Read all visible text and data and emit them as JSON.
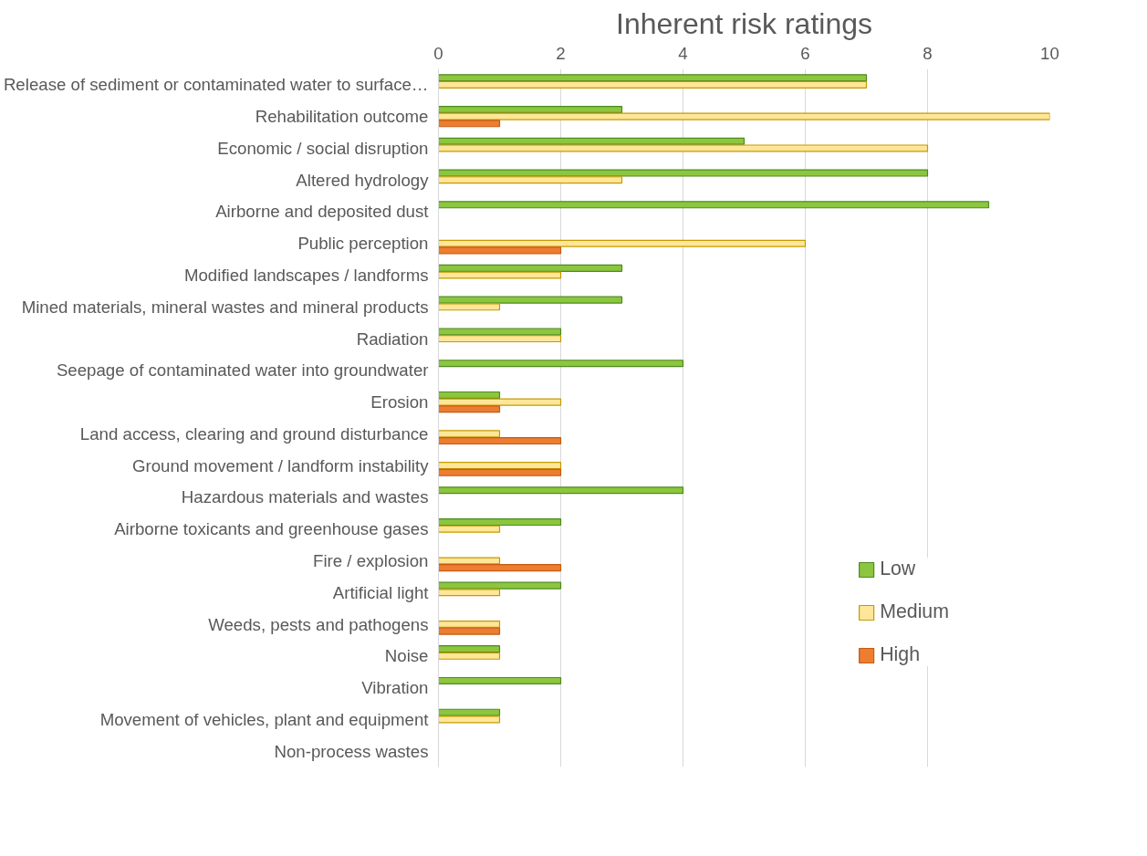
{
  "chart_data": {
    "type": "bar",
    "orientation": "horizontal",
    "title": "Inherent risk ratings",
    "categories": [
      "Release of sediment or contaminated water to surface…",
      "Rehabilitation outcome",
      "Economic / social disruption",
      "Altered hydrology",
      "Airborne and deposited dust",
      "Public perception",
      "Modified landscapes / landforms",
      "Mined materials, mineral wastes and mineral products",
      "Radiation",
      "Seepage of contaminated water into groundwater",
      "Erosion",
      "Land access, clearing and ground disturbance",
      "Ground movement / landform instability",
      "Hazardous materials and wastes",
      "Airborne toxicants and greenhouse gases",
      "Fire / explosion",
      "Artificial light",
      "Weeds, pests and pathogens",
      "Noise",
      "Vibration",
      "Movement of vehicles, plant and equipment",
      "Non-process wastes"
    ],
    "series": [
      {
        "name": "Low",
        "color": "#8cc63f",
        "values": [
          7,
          3,
          5,
          8,
          9,
          null,
          3,
          3,
          2,
          4,
          1,
          null,
          null,
          4,
          2,
          null,
          2,
          null,
          1,
          2,
          1,
          null
        ]
      },
      {
        "name": "Medium",
        "color": "#ffe699",
        "values": [
          7,
          10,
          8,
          3,
          null,
          6,
          2,
          1,
          2,
          null,
          2,
          1,
          2,
          null,
          1,
          1,
          1,
          1,
          1,
          null,
          1,
          null
        ]
      },
      {
        "name": "High",
        "color": "#ed7d31",
        "values": [
          null,
          1,
          null,
          null,
          null,
          2,
          null,
          null,
          null,
          null,
          1,
          2,
          2,
          null,
          null,
          2,
          null,
          1,
          null,
          null,
          null,
          null
        ]
      }
    ],
    "xlim": [
      0,
      10
    ],
    "xticks": [
      0,
      2,
      4,
      6,
      8,
      10
    ],
    "grid": "x",
    "legend": "bottom right"
  }
}
